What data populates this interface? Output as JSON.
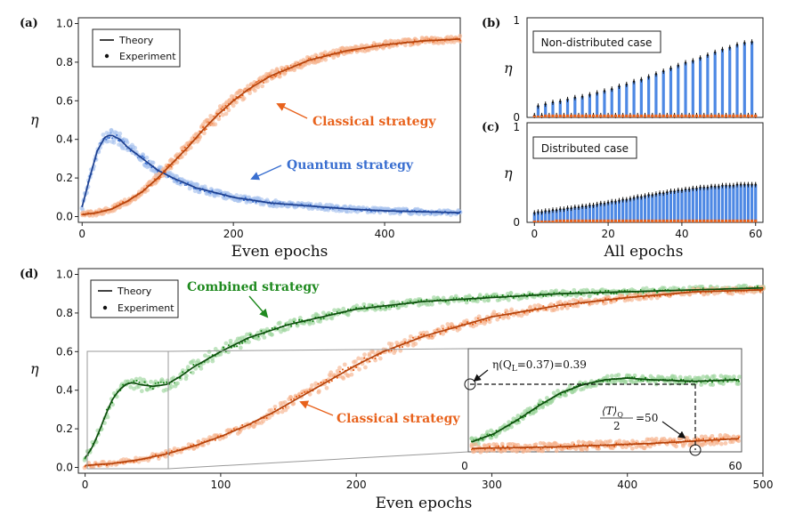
{
  "colors": {
    "quantum": "#3a6fd0",
    "quantum_light": "#a9c3ee",
    "classical": "#e8621c",
    "classical_light": "#f6b48f",
    "combined": "#1f8a1f",
    "combined_light": "#9ed69e",
    "bar_blue": "#4d88e4",
    "theory": "#111111"
  },
  "chart_data": [
    {
      "id": "a",
      "panel_label": "(a)",
      "type": "line",
      "xlabel": "Even epochs",
      "ylabel": "η",
      "xlim": [
        -5,
        500
      ],
      "ylim": [
        -0.03,
        1.03
      ],
      "xticks": [
        0,
        200,
        400
      ],
      "yticks": [
        "0.0",
        "0.2",
        "0.4",
        "0.6",
        "0.8",
        "1.0"
      ],
      "legend": {
        "position": "top-left",
        "entries": [
          "Theory",
          "Experiment"
        ]
      },
      "annotations": [
        {
          "text": "Classical strategy",
          "series": "classical",
          "arrow_to": [
            205,
            0.58
          ]
        },
        {
          "text": "Quantum strategy",
          "series": "quantum",
          "arrow_to": [
            180,
            0.2
          ]
        }
      ],
      "series": [
        {
          "key": "quantum",
          "x": [
            0,
            10,
            20,
            30,
            35,
            40,
            50,
            60,
            80,
            100,
            120,
            150,
            200,
            250,
            300,
            350,
            400,
            450,
            500
          ],
          "y": [
            0.05,
            0.2,
            0.34,
            0.41,
            0.42,
            0.42,
            0.4,
            0.36,
            0.3,
            0.24,
            0.2,
            0.15,
            0.1,
            0.07,
            0.055,
            0.04,
            0.03,
            0.025,
            0.02
          ]
        },
        {
          "key": "classical",
          "x": [
            0,
            20,
            40,
            60,
            80,
            100,
            120,
            140,
            160,
            180,
            200,
            220,
            250,
            300,
            350,
            400,
            450,
            500
          ],
          "y": [
            0.01,
            0.02,
            0.04,
            0.08,
            0.13,
            0.2,
            0.28,
            0.36,
            0.45,
            0.53,
            0.6,
            0.66,
            0.73,
            0.81,
            0.86,
            0.89,
            0.91,
            0.92
          ]
        }
      ]
    },
    {
      "id": "b",
      "panel_label": "(b)",
      "type": "bar",
      "box_label": "Non-distributed case",
      "ylabel": "η",
      "xlim": [
        -2,
        62
      ],
      "ylim": [
        0,
        1
      ],
      "yticks": [
        "0",
        "1"
      ],
      "epochs_quantum_high": [
        1,
        3,
        5,
        7,
        9,
        11,
        13,
        15,
        17,
        19,
        21,
        23,
        25,
        27,
        29,
        31,
        33,
        35,
        37,
        39,
        41,
        43,
        45,
        47,
        49,
        51,
        53,
        55,
        57,
        59
      ],
      "quantum_values": [
        0.12,
        0.14,
        0.16,
        0.17,
        0.19,
        0.21,
        0.22,
        0.24,
        0.26,
        0.28,
        0.3,
        0.33,
        0.35,
        0.38,
        0.4,
        0.43,
        0.46,
        0.49,
        0.52,
        0.55,
        0.58,
        0.6,
        0.63,
        0.66,
        0.69,
        0.72,
        0.74,
        0.77,
        0.79,
        0.8
      ],
      "classical_values": [
        0.02,
        0.02,
        0.02,
        0.03,
        0.03,
        0.03,
        0.03,
        0.03,
        0.03,
        0.03,
        0.03,
        0.03,
        0.03,
        0.03,
        0.03,
        0.03,
        0.03,
        0.03,
        0.03,
        0.03,
        0.03,
        0.03,
        0.03,
        0.03,
        0.03,
        0.03,
        0.03,
        0.03,
        0.03,
        0.03
      ]
    },
    {
      "id": "c",
      "panel_label": "(c)",
      "type": "bar",
      "box_label": "Distributed case",
      "xlabel": "All epochs",
      "ylabel": "η",
      "xlim": [
        -2,
        62
      ],
      "ylim": [
        0,
        1
      ],
      "xticks": [
        0,
        20,
        40,
        60
      ],
      "yticks": [
        "0",
        "1"
      ],
      "quantum_values": [
        0.1,
        0.11,
        0.11,
        0.12,
        0.12,
        0.13,
        0.13,
        0.14,
        0.14,
        0.15,
        0.15,
        0.16,
        0.16,
        0.17,
        0.17,
        0.18,
        0.18,
        0.19,
        0.2,
        0.2,
        0.21,
        0.22,
        0.22,
        0.23,
        0.24,
        0.24,
        0.25,
        0.26,
        0.27,
        0.27,
        0.28,
        0.29,
        0.29,
        0.3,
        0.31,
        0.31,
        0.32,
        0.33,
        0.33,
        0.34,
        0.34,
        0.35,
        0.35,
        0.36,
        0.36,
        0.37,
        0.37,
        0.37,
        0.38,
        0.38,
        0.38,
        0.39,
        0.39,
        0.39,
        0.39,
        0.4,
        0.4,
        0.4,
        0.4,
        0.4,
        0.4
      ],
      "classical_values": [
        0.02,
        0.02,
        0.02,
        0.02,
        0.02,
        0.02,
        0.03,
        0.03,
        0.03,
        0.03,
        0.03,
        0.03,
        0.03,
        0.03,
        0.03,
        0.03,
        0.03,
        0.03,
        0.03,
        0.03,
        0.03,
        0.03,
        0.03,
        0.03,
        0.03,
        0.03,
        0.03,
        0.03,
        0.03,
        0.03,
        0.03,
        0.03,
        0.03,
        0.03,
        0.03,
        0.03,
        0.03,
        0.03,
        0.03,
        0.03,
        0.03,
        0.03,
        0.03,
        0.03,
        0.03,
        0.03,
        0.03,
        0.03,
        0.03,
        0.03,
        0.03,
        0.03,
        0.03,
        0.03,
        0.03,
        0.03,
        0.03,
        0.03,
        0.03,
        0.03,
        0.03
      ]
    },
    {
      "id": "d",
      "panel_label": "(d)",
      "type": "line",
      "xlabel": "Even epochs",
      "ylabel": "η",
      "xlim": [
        -5,
        500
      ],
      "ylim": [
        -0.03,
        1.03
      ],
      "xticks": [
        0,
        100,
        200,
        300,
        400,
        500
      ],
      "yticks": [
        "0.0",
        "0.2",
        "0.4",
        "0.6",
        "0.8",
        "1.0"
      ],
      "legend": {
        "position": "top-left",
        "entries": [
          "Theory",
          "Experiment"
        ]
      },
      "annotations": [
        {
          "text": "Combined strategy",
          "series": "combined",
          "arrow_to": [
            130,
            0.72
          ]
        },
        {
          "text": "Classical strategy",
          "series": "classical",
          "arrow_to": [
            160,
            0.35
          ]
        }
      ],
      "series": [
        {
          "key": "combined",
          "x": [
            0,
            5,
            10,
            15,
            20,
            25,
            30,
            35,
            40,
            50,
            60,
            70,
            80,
            100,
            120,
            150,
            200,
            250,
            300,
            350,
            400,
            450,
            500
          ],
          "y": [
            0.05,
            0.1,
            0.18,
            0.27,
            0.35,
            0.4,
            0.43,
            0.44,
            0.43,
            0.42,
            0.43,
            0.47,
            0.52,
            0.6,
            0.67,
            0.74,
            0.82,
            0.86,
            0.88,
            0.9,
            0.91,
            0.92,
            0.93
          ]
        },
        {
          "key": "classical",
          "x": [
            0,
            20,
            40,
            60,
            80,
            100,
            120,
            140,
            160,
            180,
            200,
            220,
            250,
            300,
            350,
            400,
            450,
            500
          ],
          "y": [
            0.01,
            0.02,
            0.04,
            0.07,
            0.11,
            0.16,
            0.22,
            0.29,
            0.37,
            0.45,
            0.53,
            0.6,
            0.68,
            0.78,
            0.84,
            0.88,
            0.91,
            0.92
          ]
        }
      ],
      "inset": {
        "xlim": [
          0,
          60
        ],
        "xticks": [
          "0",
          "60"
        ],
        "label_eta": "η(Q",
        "label_eta_sub": "L",
        "label_eta_rest": "=0.37)=0.39",
        "label_T_num": "⟨T⟩",
        "label_T_sub": "Q",
        "label_T_den": "2",
        "label_T_rest": "=50",
        "marker_x": 50,
        "marker_y": 0.39
      }
    }
  ]
}
